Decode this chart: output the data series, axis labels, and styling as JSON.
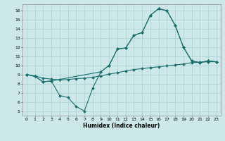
{
  "xlabel": "Humidex (Indice chaleur)",
  "background_color": "#cde8e8",
  "line_color": "#1a6e6e",
  "grid_color": "#aacfcf",
  "xlim": [
    -0.5,
    23.5
  ],
  "ylim": [
    4.5,
    16.7
  ],
  "xticks": [
    0,
    1,
    2,
    3,
    4,
    5,
    6,
    7,
    8,
    9,
    10,
    11,
    12,
    13,
    14,
    15,
    16,
    17,
    18,
    19,
    20,
    21,
    22,
    23
  ],
  "yticks": [
    5,
    6,
    7,
    8,
    9,
    10,
    11,
    12,
    13,
    14,
    15,
    16
  ],
  "line_a_x": [
    0,
    1,
    2,
    3,
    4,
    5,
    6,
    7,
    8,
    9,
    10,
    11,
    12,
    13,
    14,
    15,
    16,
    17,
    18,
    19,
    20,
    21,
    22,
    23
  ],
  "line_a_y": [
    9.0,
    8.8,
    8.2,
    8.3,
    6.7,
    6.5,
    5.5,
    5.0,
    7.5,
    9.3,
    10.0,
    11.8,
    11.9,
    13.3,
    13.6,
    15.5,
    16.2,
    16.0,
    14.4,
    12.0,
    10.5,
    10.3,
    10.5,
    10.4
  ],
  "line_b_x": [
    0,
    1,
    2,
    3,
    4,
    5,
    6,
    7,
    8,
    9,
    10,
    11,
    12,
    13,
    14,
    15,
    16,
    17,
    18,
    19,
    20,
    21,
    22,
    23
  ],
  "line_b_y": [
    9.0,
    8.85,
    8.6,
    8.5,
    8.4,
    8.45,
    8.55,
    8.6,
    8.7,
    8.85,
    9.05,
    9.2,
    9.4,
    9.55,
    9.65,
    9.75,
    9.85,
    9.95,
    10.05,
    10.15,
    10.3,
    10.35,
    10.4,
    10.4
  ],
  "line_c_x": [
    0,
    1,
    2,
    3,
    9,
    10,
    11,
    12,
    13,
    14,
    15,
    16,
    17,
    18,
    19,
    20,
    21,
    22,
    23
  ],
  "line_c_y": [
    9.0,
    8.8,
    8.2,
    8.3,
    9.3,
    10.0,
    11.8,
    11.9,
    13.3,
    13.6,
    15.5,
    16.2,
    16.0,
    14.4,
    12.0,
    10.5,
    10.3,
    10.5,
    10.4
  ]
}
